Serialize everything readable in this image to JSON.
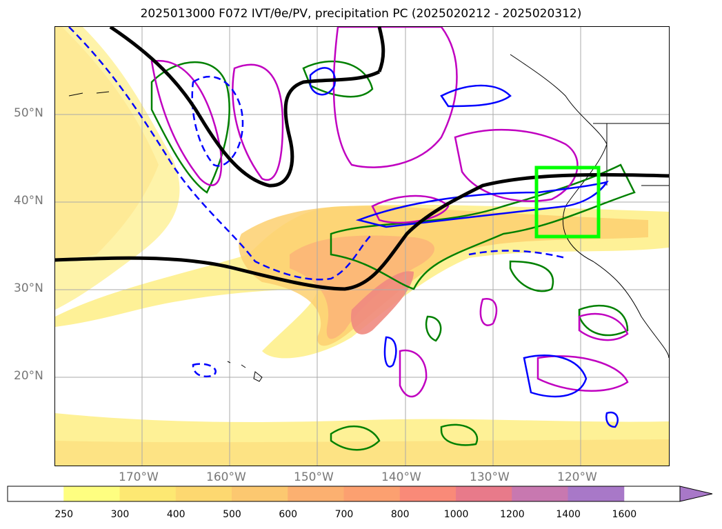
{
  "title": "2025013000 F072 IVT/θe/PV, precipitation PC (2025020212 - 2025020312)",
  "map": {
    "lat_labels": [
      "50°N",
      "40°N",
      "30°N",
      "20°N"
    ],
    "lon_labels": [
      "170°W",
      "160°W",
      "150°W",
      "140°W",
      "130°W",
      "120°W"
    ],
    "highlight_box_color": "#00ff00",
    "contour_colors": {
      "theta_e": "#000000",
      "pv": "#0000ff",
      "precip_pc_green": "#008000",
      "precip_pc_magenta": "#c000c0"
    }
  },
  "colorbar": {
    "ticks": [
      "250",
      "300",
      "400",
      "500",
      "600",
      "700",
      "800",
      "1000",
      "1200",
      "1400",
      "1600"
    ],
    "colors": [
      "#ffffff",
      "#fefe80",
      "#fde872",
      "#fdd870",
      "#fcc870",
      "#fcb070",
      "#fca070",
      "#f98a78",
      "#e87a8a",
      "#c878b0",
      "#a878c8"
    ]
  }
}
